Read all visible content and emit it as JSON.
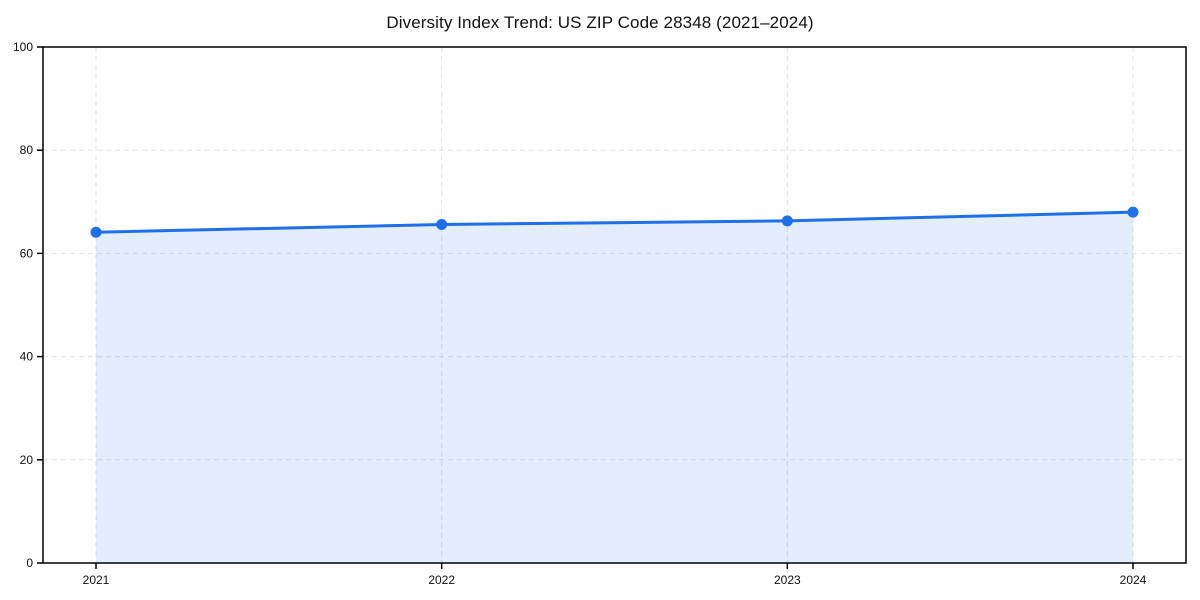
{
  "chart_data": {
    "type": "area",
    "title": "Diversity Index Trend: US ZIP Code 28348 (2021–2024)",
    "categories": [
      "2021",
      "2022",
      "2023",
      "2024"
    ],
    "series": [
      {
        "name": "Diversity Index",
        "values": [
          64.1,
          65.6,
          66.3,
          68.0
        ]
      }
    ],
    "xlabel": "",
    "ylabel": "",
    "ylim": [
      0,
      100
    ],
    "yticks": [
      0,
      20,
      40,
      60,
      80,
      100
    ],
    "grid": "dashed",
    "legend_position": "none",
    "colors": {
      "line": "#1f6fe8",
      "marker": "#1f6fe8",
      "fill": "rgba(31,111,232,0.12)",
      "grid": "#e2e2e2",
      "spine": "#000000",
      "tick_label": "#111111",
      "background": "#ffffff"
    }
  }
}
